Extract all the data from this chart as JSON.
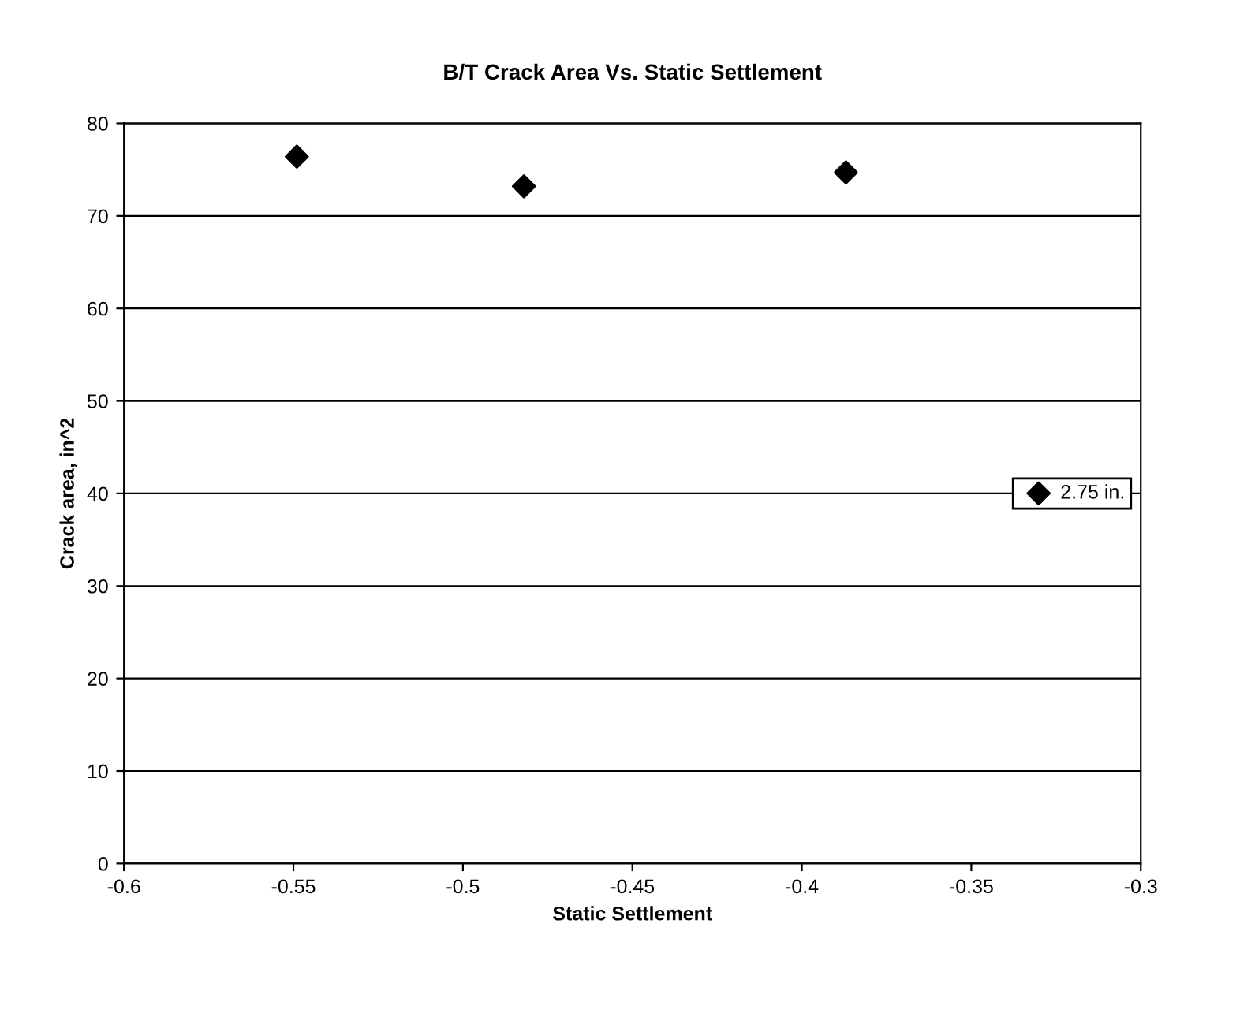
{
  "chart_data": {
    "type": "scatter",
    "title": "B/T Crack Area Vs. Static Settlement",
    "xlabel": "Static Settlement",
    "ylabel": "Crack area, in^2",
    "series": [
      {
        "name": "2.75 in.",
        "color": "#000000",
        "x": [
          -0.549,
          -0.482,
          -0.387
        ],
        "values": [
          76.4,
          73.2,
          74.7
        ]
      }
    ],
    "xlim": [
      -0.6,
      -0.3
    ],
    "xticks": [
      -0.6,
      -0.55,
      -0.5,
      -0.45,
      -0.4,
      -0.35,
      -0.3
    ],
    "ylim": [
      0,
      80
    ],
    "yticks": [
      0,
      10,
      20,
      30,
      40,
      50,
      60,
      70,
      80
    ],
    "grid": "y",
    "legend": "right",
    "marker": "diamond"
  }
}
